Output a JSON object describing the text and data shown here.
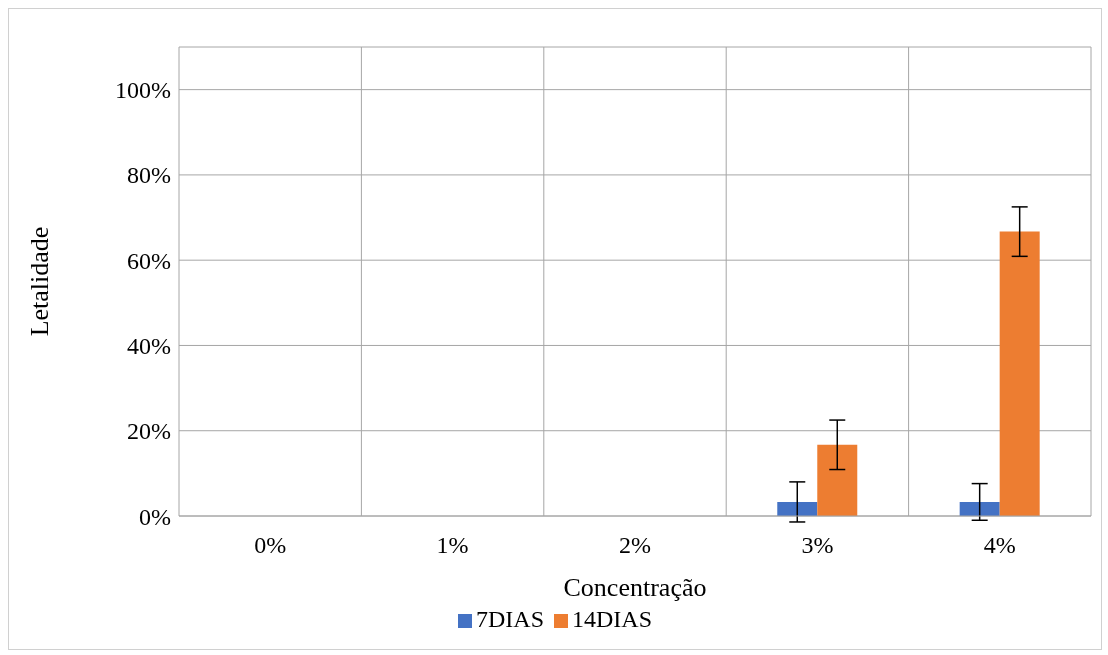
{
  "chart_data": {
    "type": "bar",
    "xlabel": "Concentração",
    "ylabel": "Letalidade",
    "categories": [
      "0%",
      "1%",
      "2%",
      "3%",
      "4%"
    ],
    "series": [
      {
        "name": "7DIAS",
        "color": "#4472c4",
        "values": [
          0,
          0,
          0,
          3.3,
          3.3
        ],
        "errors": [
          null,
          null,
          null,
          4.7,
          4.3
        ]
      },
      {
        "name": "14DIAS",
        "color": "#ed7d31",
        "values": [
          0,
          0,
          0,
          16.7,
          66.7
        ],
        "errors": [
          null,
          null,
          null,
          5.8,
          5.8
        ]
      }
    ],
    "ylim": [
      0,
      110
    ],
    "yticks": [
      {
        "value": 0,
        "label": "0%"
      },
      {
        "value": 20,
        "label": "20%"
      },
      {
        "value": 40,
        "label": "40%"
      },
      {
        "value": 60,
        "label": "60%"
      },
      {
        "value": 80,
        "label": "80%"
      },
      {
        "value": 100,
        "label": "100%"
      }
    ],
    "grid": true,
    "legend": "bottom"
  }
}
